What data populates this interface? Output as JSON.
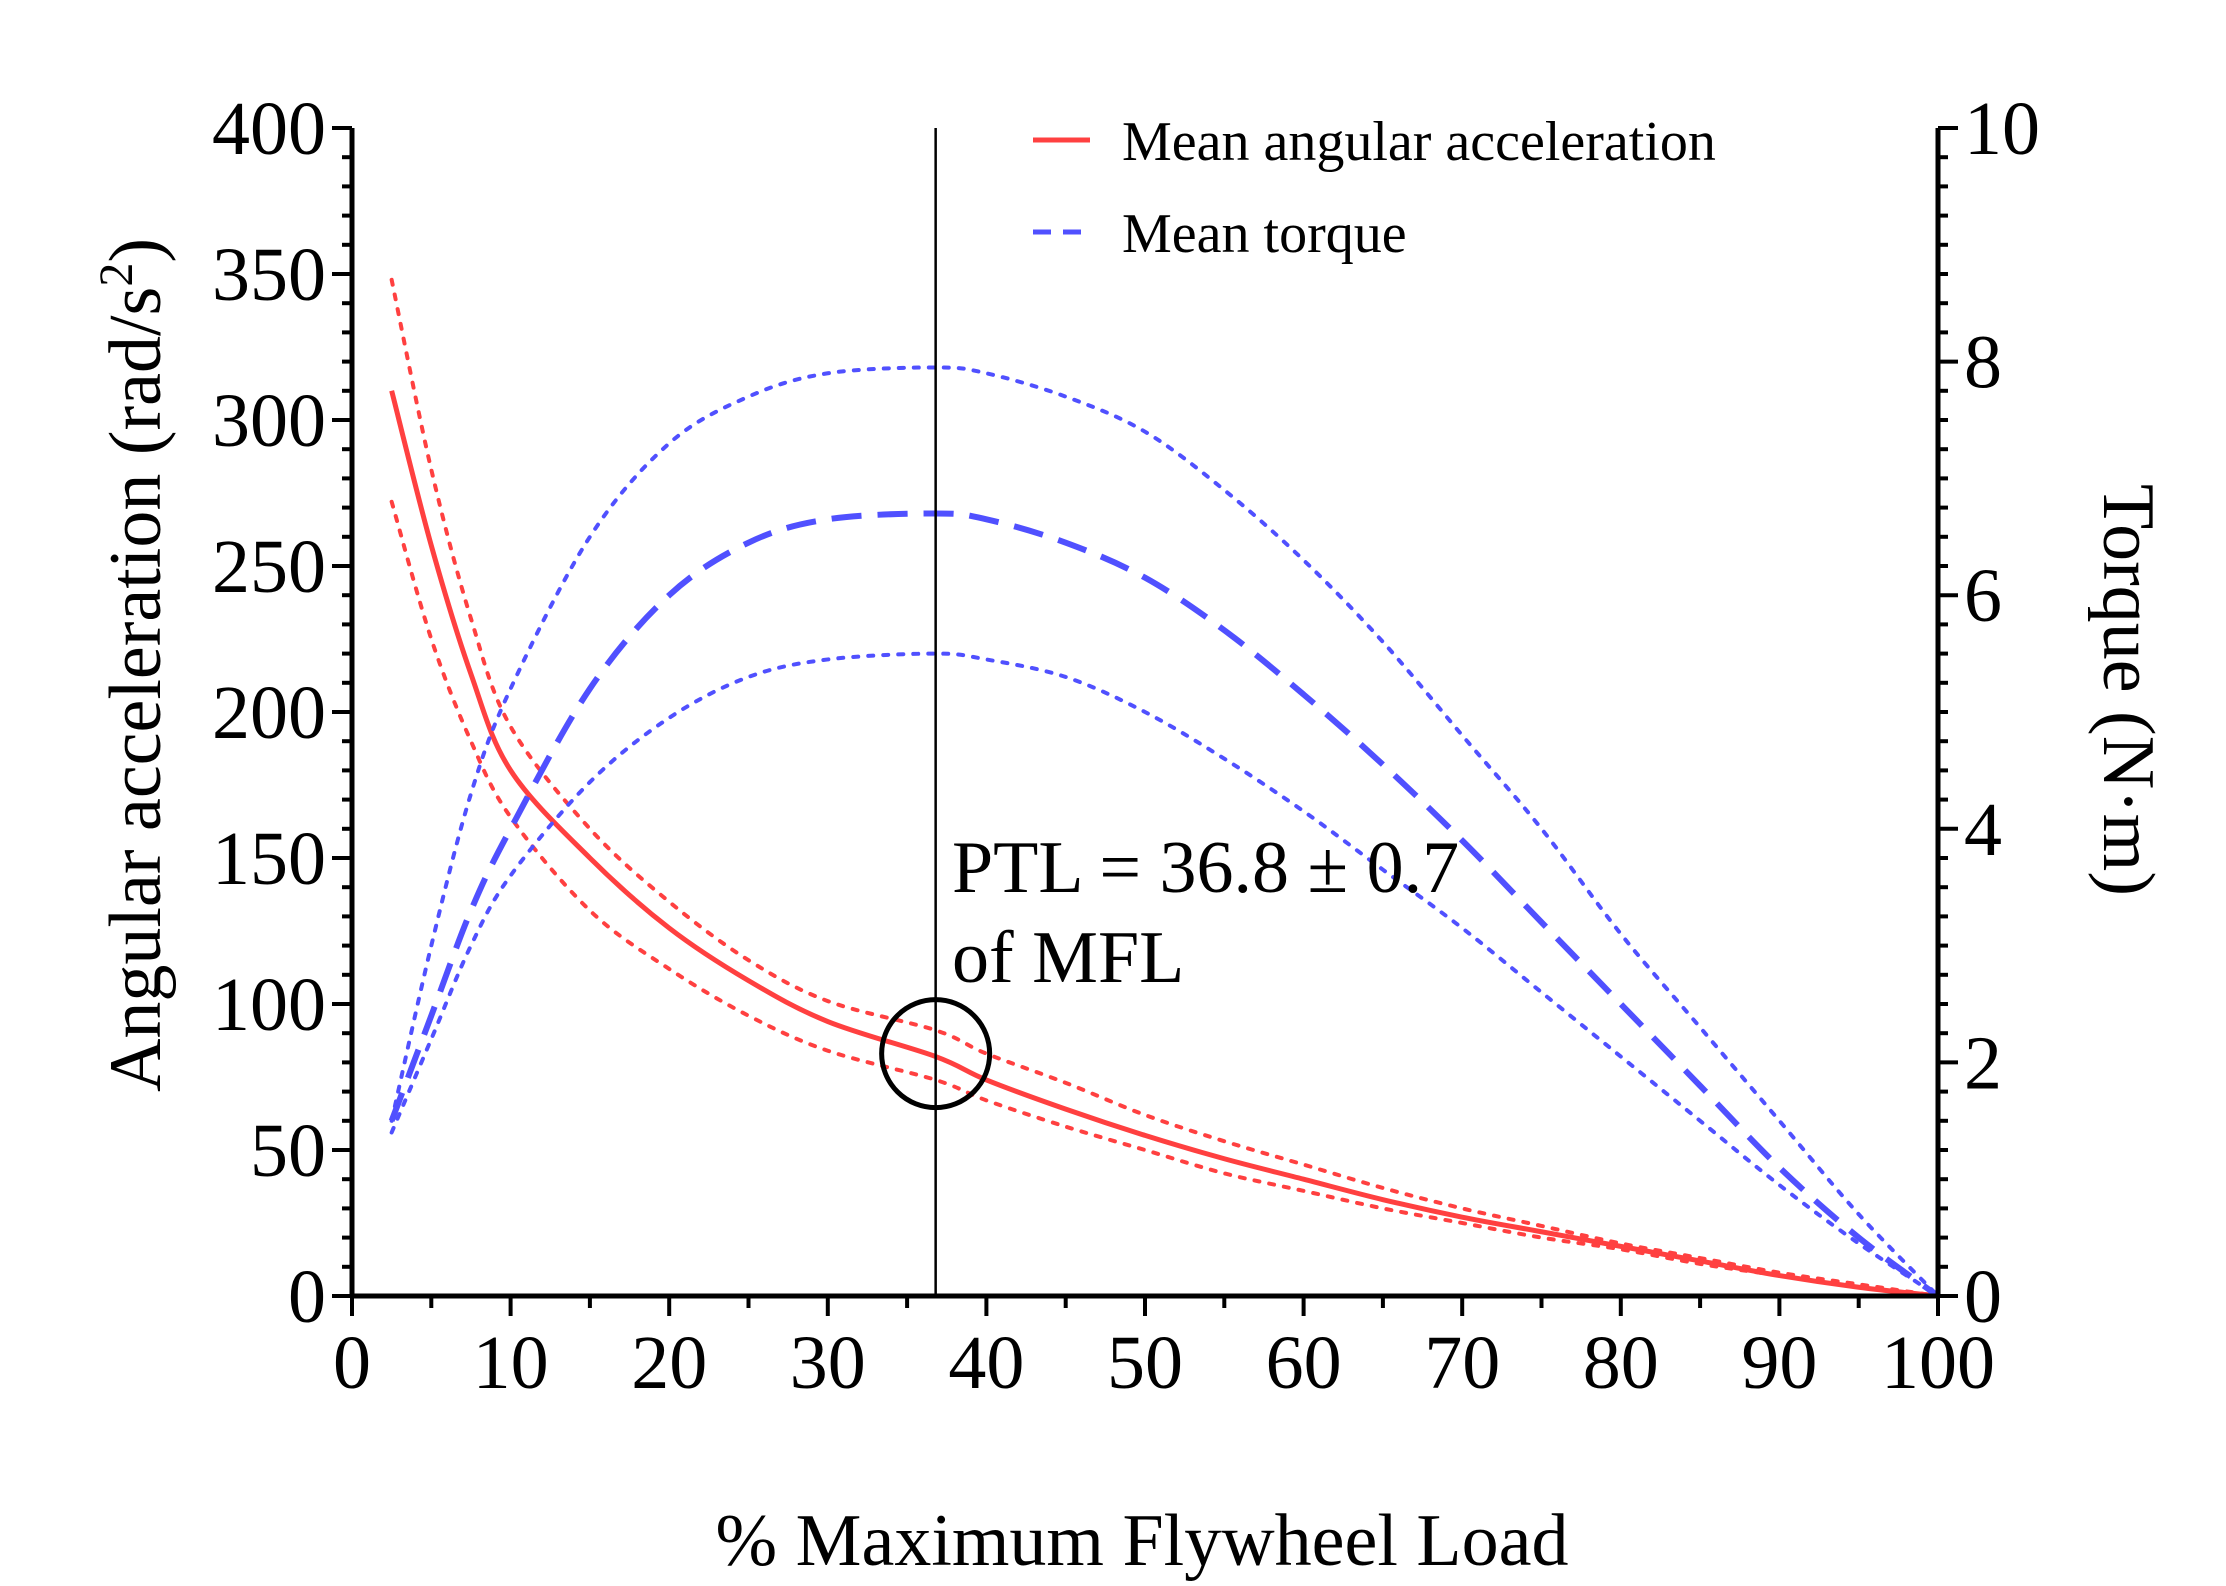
{
  "chart_data": {
    "type": "line",
    "title": "",
    "xlabel": "% Maximum Flywheel Load",
    "ylabel_main": "Angular acceleration (rad/s",
    "ylabel_sup": "2",
    "ylabel_close": ")",
    "y2label": "Torque (N·m)",
    "xlim": [
      0,
      100
    ],
    "ylim": [
      0,
      400
    ],
    "y2lim": [
      0,
      10
    ],
    "x_ticks": [
      "0",
      "10",
      "20",
      "30",
      "40",
      "50",
      "60",
      "70",
      "80",
      "90",
      "100"
    ],
    "y_ticks": [
      "0",
      "50",
      "100",
      "150",
      "200",
      "250",
      "300",
      "350",
      "400"
    ],
    "y2_ticks": [
      "0",
      "2",
      "4",
      "6",
      "8",
      "10"
    ],
    "x": [
      2.5,
      5,
      7.5,
      10,
      15,
      20,
      25,
      30,
      36.8,
      40,
      45,
      50,
      55,
      60,
      65,
      70,
      75,
      80,
      85,
      90,
      95,
      100
    ],
    "series": [
      {
        "name": "Mean angular acceleration",
        "axis": "left",
        "style": "solid",
        "color": "#ff4040",
        "values": [
          310,
          257,
          213,
          180,
          150,
          126,
          108,
          94,
          82,
          74,
          64,
          55,
          47,
          40,
          33,
          27,
          22,
          17,
          12,
          7,
          3,
          0
        ]
      },
      {
        "name": "Acceleration upper band",
        "axis": "left",
        "style": "dotted",
        "color": "#ff4040",
        "values": [
          348,
          283,
          232,
          195,
          160,
          135,
          115,
          101,
          91,
          83,
          73,
          62,
          53,
          45,
          37,
          30,
          24,
          18,
          13,
          8,
          4,
          0
        ]
      },
      {
        "name": "Acceleration lower band",
        "axis": "left",
        "style": "dotted",
        "color": "#ff4040",
        "values": [
          272,
          225,
          190,
          164,
          132,
          112,
          96,
          84,
          74,
          67,
          58,
          50,
          42,
          36,
          30,
          25,
          20,
          16,
          11,
          7,
          3,
          0
        ]
      },
      {
        "name": "Mean torque",
        "axis": "right",
        "style": "dashed",
        "color": "#5050ff",
        "values": [
          1.5,
          2.4,
          3.3,
          4.0,
          5.2,
          6.0,
          6.45,
          6.65,
          6.7,
          6.65,
          6.45,
          6.15,
          5.7,
          5.15,
          4.55,
          3.9,
          3.2,
          2.5,
          1.8,
          1.1,
          0.5,
          0
        ]
      },
      {
        "name": "Torque upper band",
        "axis": "right",
        "style": "dotted",
        "color": "#5050ff",
        "values": [
          1.5,
          3.0,
          4.3,
          5.2,
          6.5,
          7.3,
          7.7,
          7.9,
          7.95,
          7.9,
          7.7,
          7.4,
          6.9,
          6.3,
          5.6,
          4.8,
          4.0,
          3.1,
          2.3,
          1.5,
          0.7,
          0
        ]
      },
      {
        "name": "Torque lower band",
        "axis": "right",
        "style": "dotted",
        "color": "#5050ff",
        "values": [
          1.4,
          2.2,
          3.0,
          3.6,
          4.4,
          4.95,
          5.3,
          5.45,
          5.5,
          5.45,
          5.3,
          5.0,
          4.6,
          4.15,
          3.65,
          3.15,
          2.6,
          2.05,
          1.5,
          0.95,
          0.45,
          0
        ]
      }
    ],
    "legend": [
      {
        "label": "Mean angular acceleration",
        "style": "solid",
        "color": "#ff4040"
      },
      {
        "label": "Mean torque",
        "style": "dashed",
        "color": "#5050ff"
      }
    ],
    "legend_position": "top-right",
    "vertical_line_x": 36.8,
    "marker_point": {
      "x": 36.8,
      "y": 83
    },
    "annotation_line1": "PTL = 36.8 ± 0.7",
    "annotation_line2": "of MFL",
    "grid": false
  }
}
